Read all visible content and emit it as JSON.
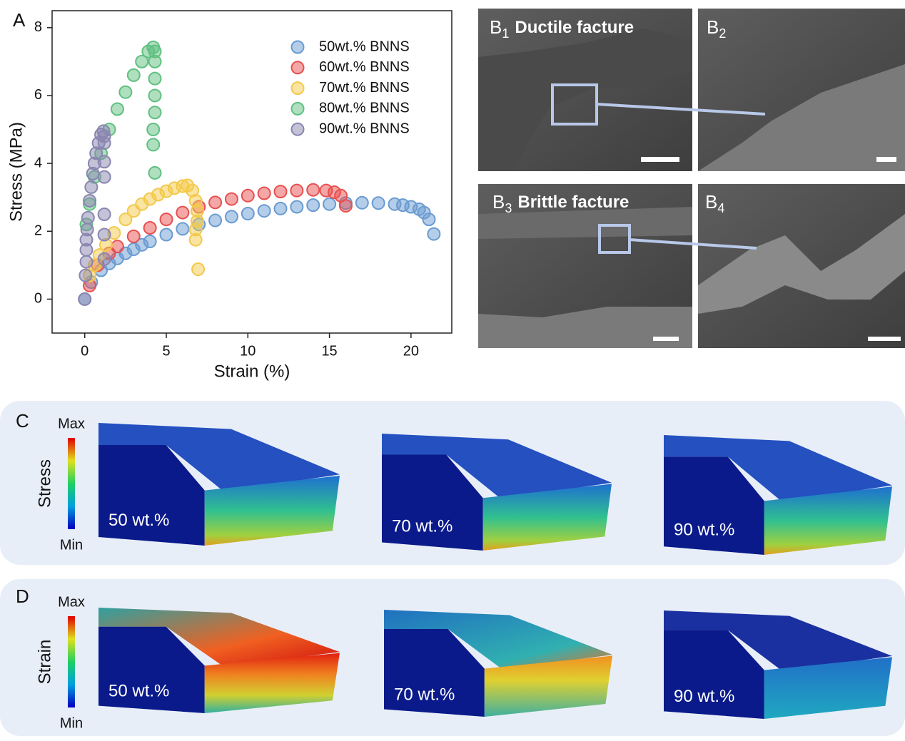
{
  "chart_data": {
    "type": "scatter",
    "xlabel": "Strain (%)",
    "ylabel": "Stress (MPa)",
    "xlim": [
      -2,
      22.5
    ],
    "ylim": [
      -1,
      8.5
    ],
    "xticks": [
      0,
      5,
      10,
      15,
      20
    ],
    "yticks": [
      0,
      2,
      4,
      6,
      8
    ],
    "legend": "upper right",
    "series": [
      {
        "name": "50wt.% BNNS",
        "color": "#6a9bd1",
        "x": [
          0,
          0.4,
          1,
          1.5,
          2,
          2.5,
          3,
          3.5,
          4,
          5,
          6,
          7,
          8,
          9,
          10,
          11,
          12,
          13,
          14,
          15,
          16,
          17,
          18,
          19,
          19.5,
          20,
          20.5,
          20.8,
          21.1,
          21.4
        ],
        "values": [
          0,
          0.5,
          0.85,
          1.05,
          1.2,
          1.35,
          1.47,
          1.6,
          1.7,
          1.9,
          2.07,
          2.2,
          2.32,
          2.43,
          2.52,
          2.6,
          2.67,
          2.72,
          2.77,
          2.8,
          2.83,
          2.84,
          2.83,
          2.8,
          2.77,
          2.72,
          2.65,
          2.55,
          2.35,
          1.92
        ]
      },
      {
        "name": "60wt.% BNNS",
        "color": "#e85050",
        "x": [
          0.3,
          0.8,
          1.5,
          2,
          3,
          4,
          5,
          6,
          7,
          8,
          9,
          10,
          11,
          12,
          13,
          14,
          14.8,
          15.3,
          15.7,
          16
        ],
        "values": [
          0.4,
          1.0,
          1.35,
          1.55,
          1.85,
          2.1,
          2.35,
          2.55,
          2.72,
          2.85,
          2.95,
          3.05,
          3.12,
          3.17,
          3.2,
          3.22,
          3.2,
          3.15,
          3.05,
          2.75
        ]
      },
      {
        "name": "70wt.% BNNS",
        "color": "#f3c94a",
        "x": [
          0.3,
          0.6,
          0.9,
          1.3,
          1.8,
          2.5,
          3,
          3.5,
          4,
          4.5,
          5,
          5.5,
          6,
          6.3,
          6.6,
          6.8,
          6.9,
          6.9,
          6.8,
          6.8,
          6.95
        ],
        "values": [
          0.7,
          1.0,
          1.3,
          1.6,
          1.95,
          2.35,
          2.6,
          2.8,
          2.95,
          3.08,
          3.18,
          3.27,
          3.33,
          3.35,
          3.2,
          2.9,
          2.6,
          2.3,
          2.05,
          1.75,
          0.88
        ]
      },
      {
        "name": "80wt.% BNNS",
        "color": "#60c080",
        "x": [
          0.1,
          0.3,
          0.6,
          1,
          1.5,
          2,
          2.5,
          3,
          3.5,
          3.9,
          4.2,
          4.3,
          4.3,
          4.3,
          4.3,
          4.3,
          4.2,
          4.2,
          4.3
        ],
        "values": [
          2.2,
          2.8,
          3.6,
          4.3,
          5.0,
          5.6,
          6.1,
          6.6,
          7.0,
          7.3,
          7.42,
          7.3,
          7.0,
          6.5,
          6.0,
          5.5,
          5.0,
          4.55,
          3.72
        ]
      },
      {
        "name": "90wt.% BNNS",
        "color": "#8a86b0",
        "x": [
          0,
          0.05,
          0.1,
          0.1,
          0.1,
          0.15,
          0.2,
          0.3,
          0.4,
          0.5,
          0.6,
          0.7,
          0.85,
          1,
          1.15,
          1.2,
          1.2,
          1.2,
          1.2,
          1.2,
          1.2,
          1.2
        ],
        "values": [
          0,
          0.7,
          1.1,
          1.45,
          1.75,
          2.05,
          2.4,
          2.9,
          3.3,
          3.7,
          4.0,
          4.3,
          4.6,
          4.85,
          4.95,
          4.8,
          4.6,
          4.05,
          3.6,
          2.5,
          1.9,
          1.18
        ]
      }
    ]
  },
  "panel_labels": {
    "a": "A",
    "c": "C",
    "d": "D"
  },
  "sem_images": [
    {
      "letter": "B",
      "sub": "1",
      "title": "Ductile facture"
    },
    {
      "letter": "B",
      "sub": "2"
    },
    {
      "letter": "B",
      "sub": "3",
      "title": "Brittle facture"
    },
    {
      "letter": "B",
      "sub": "4"
    }
  ],
  "simulations": [
    {
      "quantity": "Stress",
      "max": "Max",
      "min": "Min",
      "samples": [
        "50 wt.%",
        "70 wt.%",
        "90 wt.%"
      ]
    },
    {
      "quantity": "Strain",
      "max": "Max",
      "min": "Min",
      "samples": [
        "50 wt.%",
        "70 wt.%",
        "90 wt.%"
      ]
    }
  ]
}
